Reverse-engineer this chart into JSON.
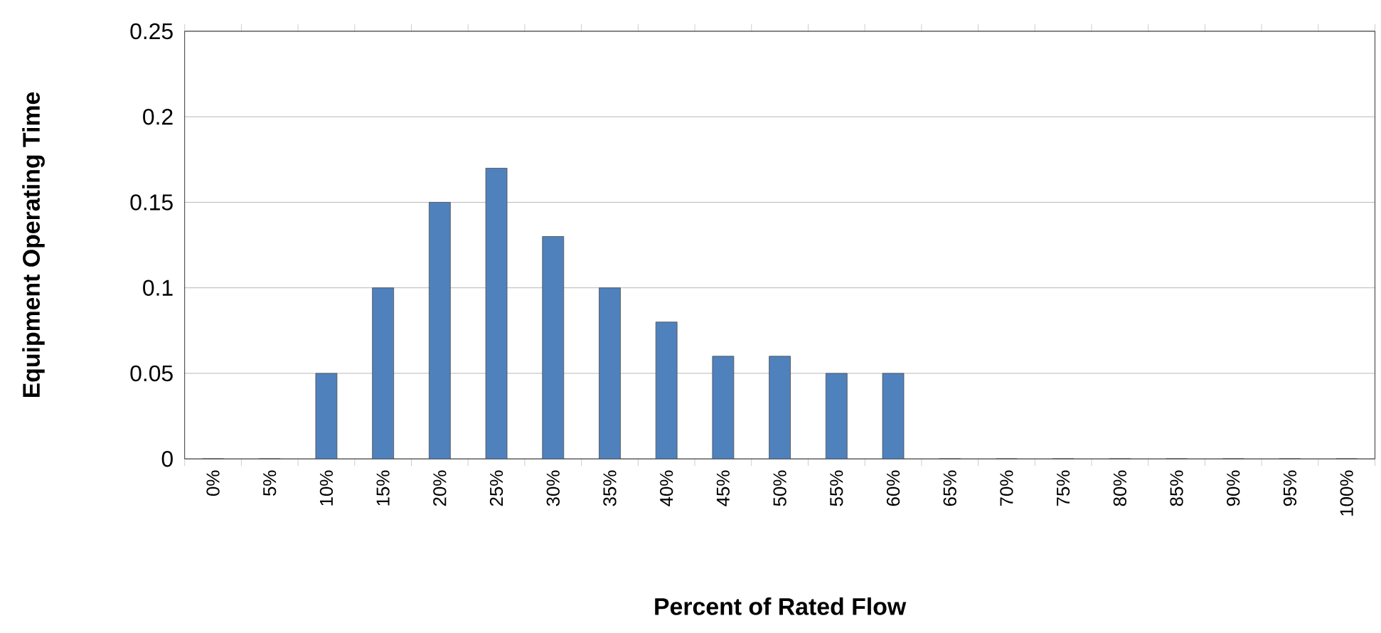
{
  "chart_data": {
    "type": "bar",
    "xlabel": "Percent of Rated Flow",
    "ylabel": "Equipment Operating Time",
    "categories": [
      "0%",
      "5%",
      "10%",
      "15%",
      "20%",
      "25%",
      "30%",
      "35%",
      "40%",
      "45%",
      "50%",
      "55%",
      "60%",
      "65%",
      "70%",
      "75%",
      "80%",
      "85%",
      "90%",
      "95%",
      "100%"
    ],
    "values": [
      0,
      0,
      0.05,
      0.1,
      0.15,
      0.17,
      0.13,
      0.1,
      0.08,
      0.06,
      0.06,
      0.05,
      0.05,
      0,
      0,
      0,
      0,
      0,
      0,
      0,
      0
    ],
    "color": "#4f81bd",
    "ylim": [
      0,
      0.25
    ],
    "yticks": [
      0,
      0.05,
      0.1,
      0.15,
      0.2,
      0.25
    ],
    "grid": "y"
  }
}
